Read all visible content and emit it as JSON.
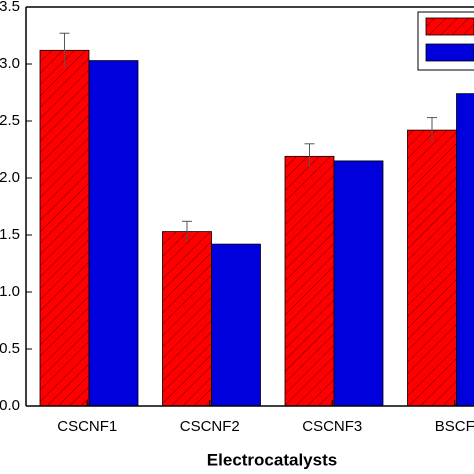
{
  "chart_data": {
    "type": "bar",
    "x_label": "Electrocatalysts",
    "categories": [
      "CSCNF1",
      "CSCNF2",
      "CSCNF3",
      "BSCF"
    ],
    "series": [
      {
        "color": "#ff0000",
        "values": [
          3.12,
          1.53,
          2.19,
          2.42
        ],
        "errors": [
          0.15,
          0.09,
          0.11,
          0.11
        ]
      },
      {
        "color": "#0000dd",
        "values": [
          3.03,
          1.42,
          2.15,
          2.74
        ]
      }
    ],
    "ylim": [
      0,
      3.5
    ],
    "yticks": [
      {
        "value": 0,
        "label": "0.0"
      },
      {
        "value": 0.5,
        "label": "0.5"
      },
      {
        "value": 1,
        "label": "1.0"
      },
      {
        "value": 1.5,
        "label": "1.5"
      },
      {
        "value": 2,
        "label": "2.0"
      },
      {
        "value": 2.5,
        "label": "2.5"
      },
      {
        "value": 3,
        "label": "3.0"
      },
      {
        "value": 3.5,
        "label": "3.5"
      }
    ],
    "legend": "top-right"
  }
}
